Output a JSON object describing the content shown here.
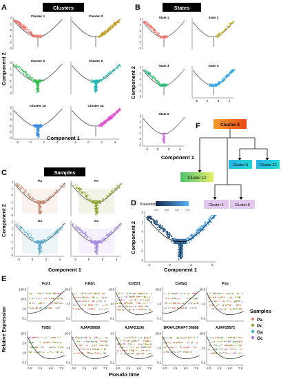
{
  "panels": {
    "A": {
      "letter": "A",
      "header": "Clusters",
      "xlabel": "Component 1",
      "ylabel": "Component 2",
      "subplots": [
        {
          "title": "Cluster 1",
          "color": "#f0766d"
        },
        {
          "title": "Cluster 3",
          "color": "#c6a12a"
        },
        {
          "title": "Cluster 5",
          "color": "#2fbc4e"
        },
        {
          "title": "Cluster 9",
          "color": "#22b7b3"
        },
        {
          "title": "Cluster 10",
          "color": "#3b8fe0"
        },
        {
          "title": "Cluster 22",
          "color": "#e14fd2"
        }
      ],
      "xticks": [
        "-2",
        "0",
        "2",
        "4"
      ],
      "yticks": [
        "2",
        "1",
        "0",
        "-1",
        "-2",
        "-3"
      ]
    },
    "B": {
      "letter": "B",
      "header": "States",
      "xlabel": "Component 1",
      "ylabel": "Component 2",
      "subplots": [
        {
          "title": "State 1",
          "color": "#f0766d"
        },
        {
          "title": "State 2",
          "color": "#b3a600"
        },
        {
          "title": "State 3",
          "color": "#2fbc7a"
        },
        {
          "title": "State 4",
          "color": "#2aa8e6"
        },
        {
          "title": "State 5",
          "color": "#d36be2"
        }
      ],
      "xticks": [
        "-2",
        "0",
        "2",
        "4"
      ],
      "yticks": [
        "2",
        "1",
        "0",
        "-1",
        "-2",
        "-3"
      ]
    },
    "C": {
      "letter": "C",
      "header": "Samples",
      "xlabel": "Component 1",
      "ylabel": "Component 2",
      "subplots": [
        {
          "title": "Pa",
          "color": "#c78a72"
        },
        {
          "title": "Pc",
          "color": "#8ca832"
        },
        {
          "title": "Ga",
          "color": "#5aa9c9"
        },
        {
          "title": "Gc",
          "color": "#a58be0"
        }
      ],
      "xticks": [
        "-2",
        "0",
        "2",
        "4"
      ],
      "yticks": [
        "2",
        "1",
        "0",
        "-1",
        "-2",
        "-3"
      ]
    },
    "D": {
      "letter": "D",
      "legend_title": "Pseudotime",
      "legend_ticks": [
        "0.0",
        "2.5",
        "5.0",
        "7.5"
      ],
      "xlabel": "Component 1",
      "ylabel": "Component 2",
      "xticks": [
        "-2",
        "0",
        "2",
        "4"
      ],
      "yticks": [
        "2",
        "1",
        "0",
        "-1",
        "-2",
        "-3"
      ],
      "gradient_start": "#13294b",
      "gradient_end": "#56b1f7"
    },
    "E": {
      "letter": "E",
      "ylabel": "Relative Expression",
      "xlabel": "Pseudo time",
      "xticks": [
        "0.0",
        "2.5",
        "5.0",
        "7.5"
      ],
      "genes_row1": [
        "Fcn1",
        "Klkb1",
        "CUZD1",
        "Col5a1",
        "Psp"
      ],
      "genes_row2": [
        "TUB2",
        "AJAP20658",
        "AJAP21106",
        "BRAFLDRAFT 56888",
        "AJAP25572"
      ],
      "yticks_row1": [
        [
          "100.0",
          "10.0",
          "1.0",
          "0.1"
        ],
        [
          "10.0",
          "1.0",
          "0.1"
        ],
        [
          "10.0",
          "1.0",
          "0.1"
        ],
        [
          "10.0",
          "1.0",
          "0.1"
        ],
        [
          "10.0",
          "1.0",
          "0.1"
        ]
      ],
      "yticks_row2": [
        [
          "10.0",
          "3.0",
          "1.0",
          "0.3"
        ],
        [
          "10.0",
          "1.0",
          "0.1"
        ],
        [
          "1.0",
          "0.1"
        ],
        [
          "10.0",
          "1.0",
          "0.1"
        ],
        [
          "10.0",
          "1.0",
          "0.1"
        ]
      ],
      "legend_title": "Samples",
      "samples": [
        {
          "label": "Pa",
          "color": "#f08080"
        },
        {
          "label": "Pc",
          "color": "#8ca832"
        },
        {
          "label": "Ga",
          "color": "#3bb3c3"
        },
        {
          "label": "Gc",
          "color": "#b07ae0"
        }
      ]
    },
    "F": {
      "letter": "F",
      "root": {
        "label": "Cluster 3",
        "color": "#f07c1c"
      },
      "nodes": [
        {
          "id": "c12",
          "label": "Cluster 12",
          "color": "#c9e45a"
        },
        {
          "id": "c9",
          "label": "Cluster 9",
          "color": "#22c9d8"
        },
        {
          "id": "c22",
          "label": "Cluster 22",
          "color": "#22c9d8"
        },
        {
          "id": "c1",
          "label": "Cluster 1",
          "color": "#e2c8ee"
        },
        {
          "id": "c5",
          "label": "Cluster 5",
          "color": "#e2c8ee"
        }
      ]
    }
  }
}
